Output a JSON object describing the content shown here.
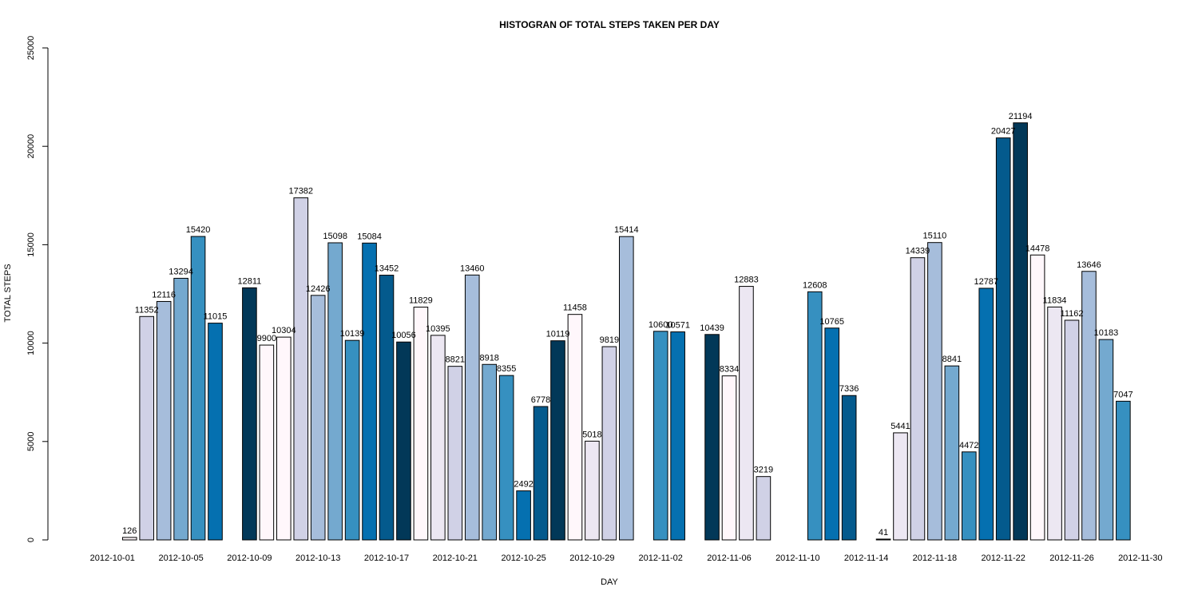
{
  "chart_data": {
    "type": "bar",
    "title": "HISTOGRAN OF TOTAL STEPS TAKEN PER DAY",
    "xlabel": "DAY",
    "ylabel": "TOTAL STEPS",
    "ylim": [
      0,
      25000
    ],
    "yticks": [
      0,
      5000,
      10000,
      15000,
      20000,
      25000
    ],
    "ytick_labels": [
      "0",
      "5000",
      "10000",
      "15000",
      "20000",
      "25000"
    ],
    "grid": false,
    "legend": "none",
    "palette": [
      "#FFF7FB",
      "#ECE7F2",
      "#D0D1E6",
      "#A6BDDB",
      "#74A9CF",
      "#3690C0",
      "#0570B0",
      "#045A8D",
      "#023858"
    ],
    "categories": [
      "2012-10-01",
      "2012-10-02",
      "2012-10-03",
      "2012-10-04",
      "2012-10-05",
      "2012-10-06",
      "2012-10-07",
      "2012-10-08",
      "2012-10-09",
      "2012-10-10",
      "2012-10-11",
      "2012-10-12",
      "2012-10-13",
      "2012-10-14",
      "2012-10-15",
      "2012-10-16",
      "2012-10-17",
      "2012-10-18",
      "2012-10-19",
      "2012-10-20",
      "2012-10-21",
      "2012-10-22",
      "2012-10-23",
      "2012-10-24",
      "2012-10-25",
      "2012-10-26",
      "2012-10-27",
      "2012-10-28",
      "2012-10-29",
      "2012-10-30",
      "2012-10-31",
      "2012-11-01",
      "2012-11-02",
      "2012-11-03",
      "2012-11-04",
      "2012-11-05",
      "2012-11-06",
      "2012-11-07",
      "2012-11-08",
      "2012-11-09",
      "2012-11-10",
      "2012-11-11",
      "2012-11-12",
      "2012-11-13",
      "2012-11-14",
      "2012-11-15",
      "2012-11-16",
      "2012-11-17",
      "2012-11-18",
      "2012-11-19",
      "2012-11-20",
      "2012-11-21",
      "2012-11-22",
      "2012-11-23",
      "2012-11-24",
      "2012-11-25",
      "2012-11-26",
      "2012-11-27",
      "2012-11-28",
      "2012-11-29",
      "2012-11-30"
    ],
    "values": [
      0,
      126,
      11352,
      12116,
      13294,
      15420,
      11015,
      0,
      12811,
      9900,
      10304,
      17382,
      12426,
      15098,
      10139,
      15084,
      13452,
      10056,
      11829,
      10395,
      8821,
      13460,
      8918,
      8355,
      2492,
      6778,
      10119,
      11458,
      5018,
      9819,
      15414,
      0,
      10600,
      10571,
      0,
      10439,
      8334,
      12883,
      3219,
      0,
      0,
      12608,
      10765,
      7336,
      0,
      41,
      5441,
      14339,
      15110,
      8841,
      4472,
      12787,
      20427,
      21194,
      14478,
      11834,
      11162,
      13646,
      10183,
      7047,
      0
    ],
    "colors": [
      "#023858",
      "#FFF7FB",
      "#D0D1E6",
      "#A6BDDB",
      "#74A9CF",
      "#3690C0",
      "#0570B0",
      "#023858",
      "#023858",
      "#FFF7FB",
      "#FFF7FB",
      "#D0D1E6",
      "#A6BDDB",
      "#74A9CF",
      "#3690C0",
      "#0570B0",
      "#045A8D",
      "#023858",
      "#FFF7FB",
      "#ECE7F2",
      "#D0D1E6",
      "#A6BDDB",
      "#74A9CF",
      "#3690C0",
      "#0570B0",
      "#045A8D",
      "#023858",
      "#FFF7FB",
      "#ECE7F2",
      "#D0D1E6",
      "#A6BDDB",
      "#023858",
      "#3690C0",
      "#0570B0",
      "#023858",
      "#023858",
      "#FFF7FB",
      "#ECE7F2",
      "#D0D1E6",
      "#023858",
      "#023858",
      "#3690C0",
      "#0570B0",
      "#045A8D",
      "#023858",
      "#023858",
      "#ECE7F2",
      "#D0D1E6",
      "#A6BDDB",
      "#74A9CF",
      "#3690C0",
      "#0570B0",
      "#045A8D",
      "#023858",
      "#FFF7FB",
      "#ECE7F2",
      "#D0D1E6",
      "#A6BDDB",
      "#74A9CF",
      "#3690C0",
      "#023858"
    ],
    "data_labels": [
      "",
      "126",
      "11352",
      "12116",
      "13294",
      "15420",
      "11015",
      "",
      "12811",
      "9900",
      "10304",
      "17382",
      "12426",
      "15098",
      "10139",
      "15084",
      "13452",
      "10056",
      "11829",
      "10395",
      "8821",
      "13460",
      "8918",
      "8355",
      "2492",
      "6778",
      "10119",
      "11458",
      "5018",
      "9819",
      "15414",
      "",
      "10600",
      "10571",
      "",
      "10439",
      "8334",
      "12883",
      "3219",
      "",
      "",
      "12608",
      "10765",
      "7336",
      "",
      "41",
      "5441",
      "14339",
      "15110",
      "8841",
      "4472",
      "12787",
      "20427",
      "21194",
      "14478",
      "11834",
      "11162",
      "13646",
      "10183",
      "7047",
      ""
    ],
    "x_tick_labels": [
      {
        "index": 0,
        "label": "2012-10-01"
      },
      {
        "index": 4,
        "label": "2012-10-05"
      },
      {
        "index": 8,
        "label": "2012-10-09"
      },
      {
        "index": 12,
        "label": "2012-10-13"
      },
      {
        "index": 16,
        "label": "2012-10-17"
      },
      {
        "index": 20,
        "label": "2012-10-21"
      },
      {
        "index": 24,
        "label": "2012-10-25"
      },
      {
        "index": 28,
        "label": "2012-10-29"
      },
      {
        "index": 32,
        "label": "2012-11-02"
      },
      {
        "index": 36,
        "label": "2012-11-06"
      },
      {
        "index": 40,
        "label": "2012-11-10"
      },
      {
        "index": 44,
        "label": "2012-11-14"
      },
      {
        "index": 48,
        "label": "2012-11-18"
      },
      {
        "index": 52,
        "label": "2012-11-22"
      },
      {
        "index": 56,
        "label": "2012-11-26"
      },
      {
        "index": 60,
        "label": "2012-11-30"
      }
    ]
  }
}
